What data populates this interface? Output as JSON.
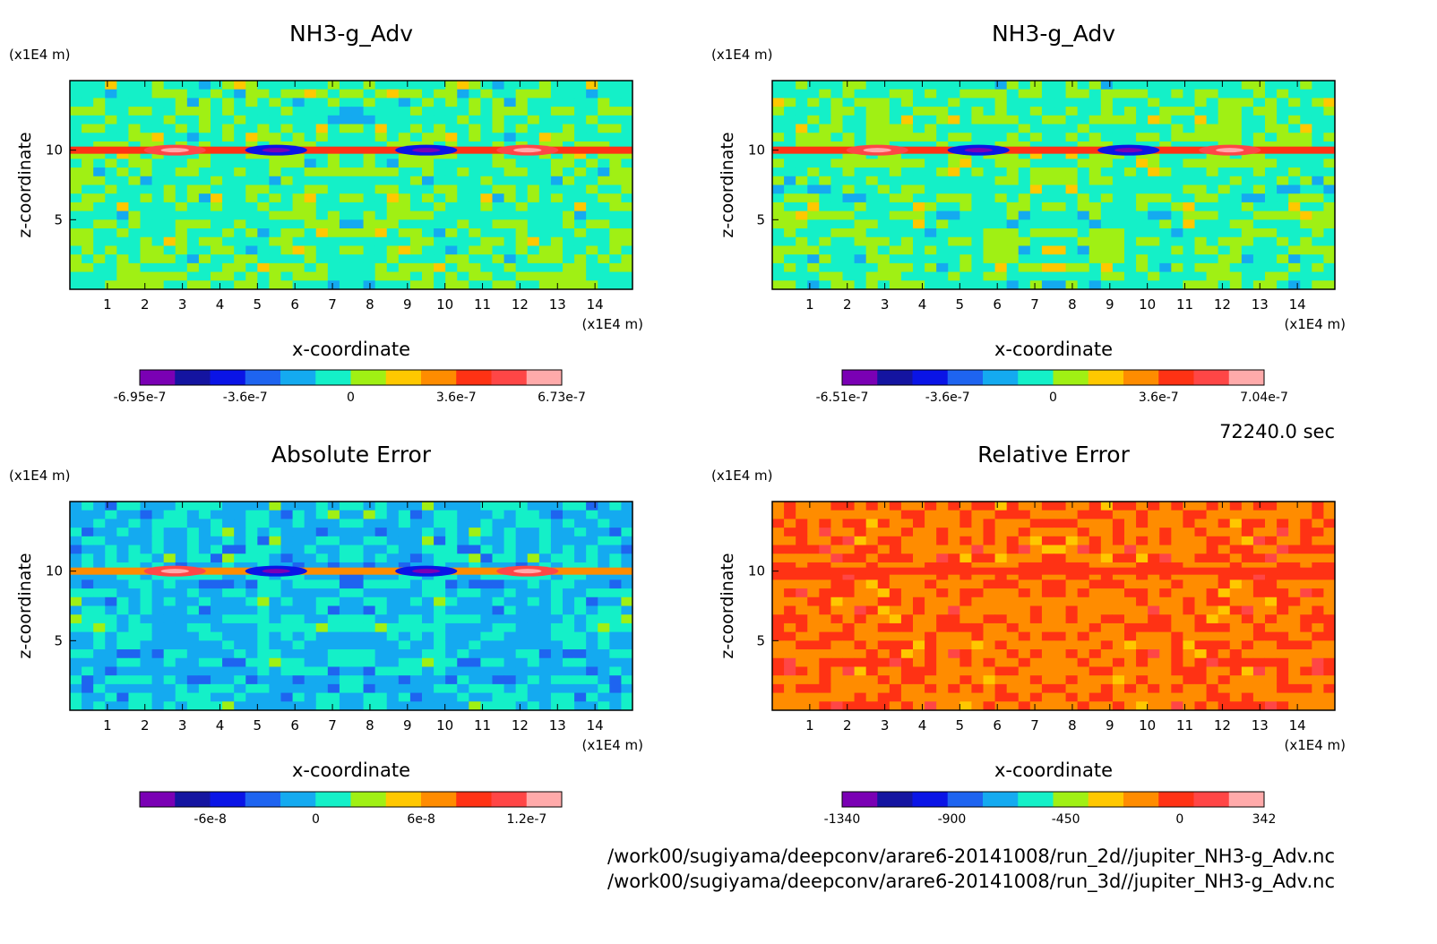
{
  "timestamp": "72240.0 sec",
  "files": [
    "/work00/sugiyama/deepconv/arare6-20141008/run_2d//jupiter_NH3-g_Adv.nc",
    "/work00/sugiyama/deepconv/arare6-20141008/run_3d//jupiter_NH3-g_Adv.nc"
  ],
  "palette": [
    "#7a00b4",
    "#1414a0",
    "#0a14e6",
    "#1e64f0",
    "#14aaf0",
    "#14f0c8",
    "#a0f014",
    "#ffc800",
    "#ff8c00",
    "#ff3214",
    "#ff4646",
    "#ffaaaa"
  ],
  "chart_data": [
    {
      "type": "heatmap",
      "title": "NH3-g_Adv",
      "xlabel": "x-coordinate",
      "ylabel": "z-coordinate",
      "xunit": "(x1E4 m)",
      "yunit": "(x1E4 m)",
      "xticks": [
        "1",
        "2",
        "3",
        "4",
        "5",
        "6",
        "7",
        "8",
        "9",
        "10",
        "11",
        "12",
        "13",
        "14"
      ],
      "yticks": [
        "5",
        "10"
      ],
      "xlim": [
        0,
        15
      ],
      "ylim": [
        0,
        15
      ],
      "colorbar_ticks": [
        "-6.95e-7",
        "-3.6e-7",
        "0",
        "3.6e-7",
        "6.73e-7"
      ],
      "colorbar_positions": [
        0,
        0.25,
        0.5,
        0.75,
        1.0
      ],
      "dominant_levels": [
        5,
        6
      ],
      "band_level": 9
    },
    {
      "type": "heatmap",
      "title": "NH3-g_Adv",
      "xlabel": "x-coordinate",
      "ylabel": "z-coordinate",
      "xunit": "(x1E4 m)",
      "yunit": "(x1E4 m)",
      "xticks": [
        "1",
        "2",
        "3",
        "4",
        "5",
        "6",
        "7",
        "8",
        "9",
        "10",
        "11",
        "12",
        "13",
        "14"
      ],
      "yticks": [
        "5",
        "10"
      ],
      "xlim": [
        0,
        15
      ],
      "ylim": [
        0,
        15
      ],
      "colorbar_ticks": [
        "-6.51e-7",
        "-3.6e-7",
        "0",
        "3.6e-7",
        "7.04e-7"
      ],
      "colorbar_positions": [
        0,
        0.25,
        0.5,
        0.75,
        1.0
      ],
      "dominant_levels": [
        5,
        6
      ],
      "band_level": 9
    },
    {
      "type": "heatmap",
      "title": "Absolute Error",
      "xlabel": "x-coordinate",
      "ylabel": "z-coordinate",
      "xunit": "(x1E4 m)",
      "yunit": "(x1E4 m)",
      "xticks": [
        "1",
        "2",
        "3",
        "4",
        "5",
        "6",
        "7",
        "8",
        "9",
        "10",
        "11",
        "12",
        "13",
        "14"
      ],
      "yticks": [
        "5",
        "10"
      ],
      "xlim": [
        0,
        15
      ],
      "ylim": [
        0,
        15
      ],
      "colorbar_ticks": [
        "-6e-8",
        "0",
        "6e-8",
        "1.2e-7"
      ],
      "colorbar_positions": [
        0.167,
        0.417,
        0.667,
        0.917
      ],
      "dominant_levels": [
        4,
        5
      ],
      "band_level": 8
    },
    {
      "type": "heatmap",
      "title": "Relative Error",
      "xlabel": "x-coordinate",
      "ylabel": "z-coordinate",
      "xunit": "(x1E4 m)",
      "yunit": "(x1E4 m)",
      "xticks": [
        "1",
        "2",
        "3",
        "4",
        "5",
        "6",
        "7",
        "8",
        "9",
        "10",
        "11",
        "12",
        "13",
        "14"
      ],
      "yticks": [
        "5",
        "10"
      ],
      "xlim": [
        0,
        15
      ],
      "ylim": [
        0,
        15
      ],
      "colorbar_ticks": [
        "-1340",
        "-900",
        "-450",
        "0",
        "342"
      ],
      "colorbar_positions": [
        0,
        0.26,
        0.53,
        0.8,
        1.0
      ],
      "dominant_levels": [
        8,
        9
      ],
      "band_level": 9
    }
  ]
}
